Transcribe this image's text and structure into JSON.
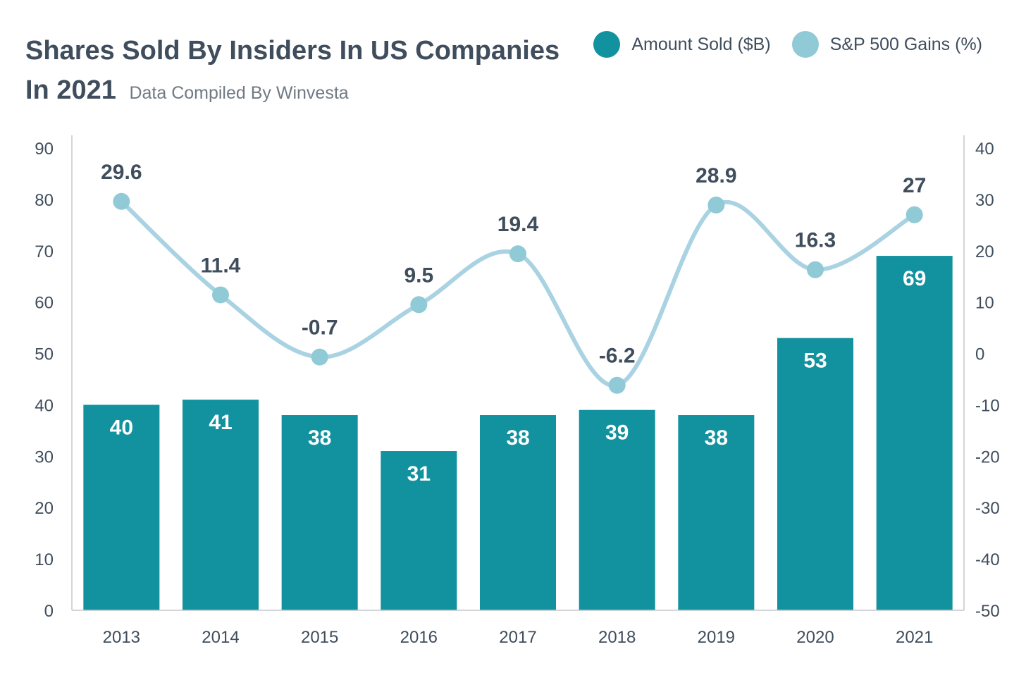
{
  "header": {
    "title": "Shares Sold By Insiders In US Companies In 2021",
    "subtitle": "Data Compiled By Winvesta"
  },
  "legend": {
    "bars_label": "Amount Sold ($B)",
    "line_label": "S&P 500 Gains (%)"
  },
  "colors": {
    "bar": "#12919e",
    "line": "#a9d2e3",
    "marker": "#8fcad6",
    "text": "#3f4d5c",
    "axis": "#c4c8cc"
  },
  "chart_data": {
    "type": "bar",
    "categories": [
      "2013",
      "2014",
      "2015",
      "2016",
      "2017",
      "2018",
      "2019",
      "2020",
      "2021"
    ],
    "series": [
      {
        "name": "Amount Sold ($B)",
        "type": "bar",
        "axis": "left",
        "values": [
          40,
          41,
          38,
          31,
          38,
          39,
          38,
          53,
          69
        ]
      },
      {
        "name": "S&P 500 Gains (%)",
        "type": "line",
        "axis": "right",
        "values": [
          29.6,
          11.4,
          -0.7,
          9.5,
          19.4,
          -6.2,
          28.9,
          16.3,
          27
        ]
      }
    ],
    "y_left": {
      "min": 0,
      "max": 90,
      "ticks": [
        0,
        10,
        20,
        30,
        40,
        50,
        60,
        70,
        80,
        90
      ]
    },
    "y_right": {
      "min": -50,
      "max": 40,
      "ticks": [
        -50,
        -40,
        -30,
        -20,
        -10,
        0,
        10,
        20,
        30,
        40
      ]
    },
    "title": "Shares Sold By Insiders In US Companies In 2021",
    "subtitle": "Data Compiled By Winvesta",
    "legend_position": "top-right",
    "grid": false
  }
}
